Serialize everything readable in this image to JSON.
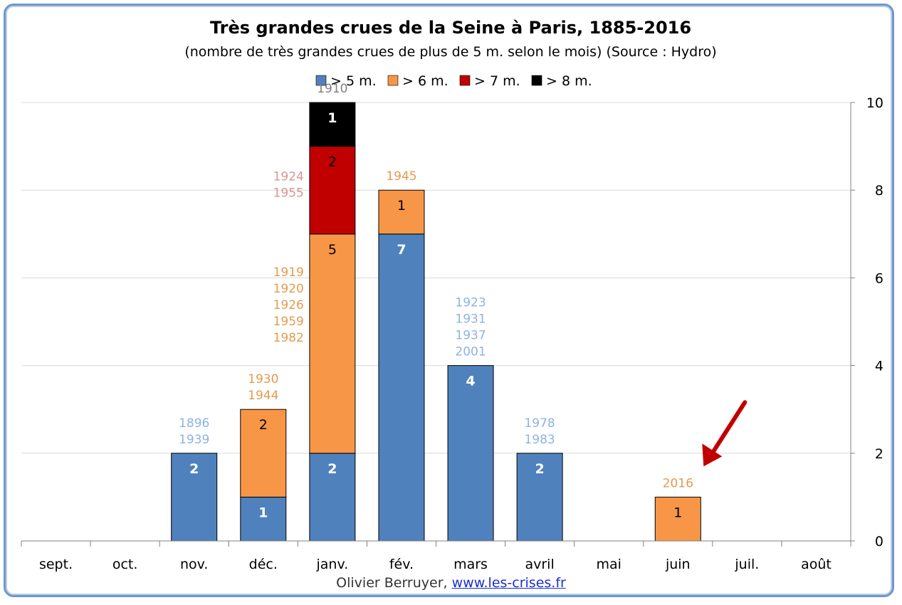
{
  "chart_data": {
    "type": "bar",
    "stacked": true,
    "title": "Très grandes crues de la Seine à Paris, 1885-2016",
    "subtitle": "(nombre de très grandes crues de plus de 5 m. selon le mois) (Source : Hydro)",
    "categories": [
      "sept.",
      "oct.",
      "nov.",
      "déc.",
      "janv.",
      "fév.",
      "mars",
      "avril",
      "mai",
      "juin",
      "juil.",
      "août"
    ],
    "ylim": [
      0,
      10
    ],
    "yticks": [
      0,
      2,
      4,
      6,
      8,
      10
    ],
    "y_axis_side": "right",
    "grid": true,
    "legend_position": "top",
    "series": [
      {
        "name": "> 5 m.",
        "color": "#4f81bd",
        "label_color": "#ffffff",
        "values": [
          0,
          0,
          2,
          1,
          2,
          7,
          4,
          2,
          0,
          0,
          0,
          0
        ]
      },
      {
        "name": "> 6 m.",
        "color": "#f79646",
        "label_color": "#000000",
        "values": [
          0,
          0,
          0,
          2,
          5,
          1,
          0,
          0,
          0,
          1,
          0,
          0
        ]
      },
      {
        "name": "> 7 m.",
        "color": "#c00000",
        "label_color": "#000000",
        "values": [
          0,
          0,
          0,
          0,
          2,
          0,
          0,
          0,
          0,
          0,
          0,
          0
        ]
      },
      {
        "name": "> 8 m.",
        "color": "#000000",
        "label_color": "#ffffff",
        "values": [
          0,
          0,
          0,
          0,
          1,
          0,
          0,
          0,
          0,
          0,
          0,
          0
        ]
      }
    ],
    "annotations": [
      {
        "category": "nov.",
        "series": 0,
        "color": "#8db3e2",
        "years": [
          "1896",
          "1939"
        ]
      },
      {
        "category": "déc.",
        "series": 1,
        "color": "#e59a4f",
        "years": [
          "1930",
          "1944"
        ]
      },
      {
        "category": "janv.",
        "series": 1,
        "color": "#e59a4f",
        "years": [
          "1919",
          "1920",
          "1926",
          "1959",
          "1982"
        ]
      },
      {
        "category": "janv.",
        "series": 2,
        "color": "#d99594",
        "years": [
          "1924",
          "1955"
        ]
      },
      {
        "category": "janv.",
        "series": 3,
        "color": "#808080",
        "years": [
          "1910"
        ]
      },
      {
        "category": "fév.",
        "series": 1,
        "color": "#e59a4f",
        "years": [
          "1945"
        ]
      },
      {
        "category": "mars",
        "series": 0,
        "color": "#8db3e2",
        "years": [
          "1923",
          "1931",
          "1937",
          "2001"
        ]
      },
      {
        "category": "avril",
        "series": 0,
        "color": "#8db3e2",
        "years": [
          "1978",
          "1983"
        ]
      },
      {
        "category": "juin",
        "series": 1,
        "color": "#e59a4f",
        "years": [
          "2016"
        ]
      }
    ],
    "highlight_arrow": {
      "category": "juin",
      "color": "#c00000"
    }
  },
  "credit": {
    "author": "Olivier Berruyer,",
    "link_text": "www.les-crises.fr"
  }
}
